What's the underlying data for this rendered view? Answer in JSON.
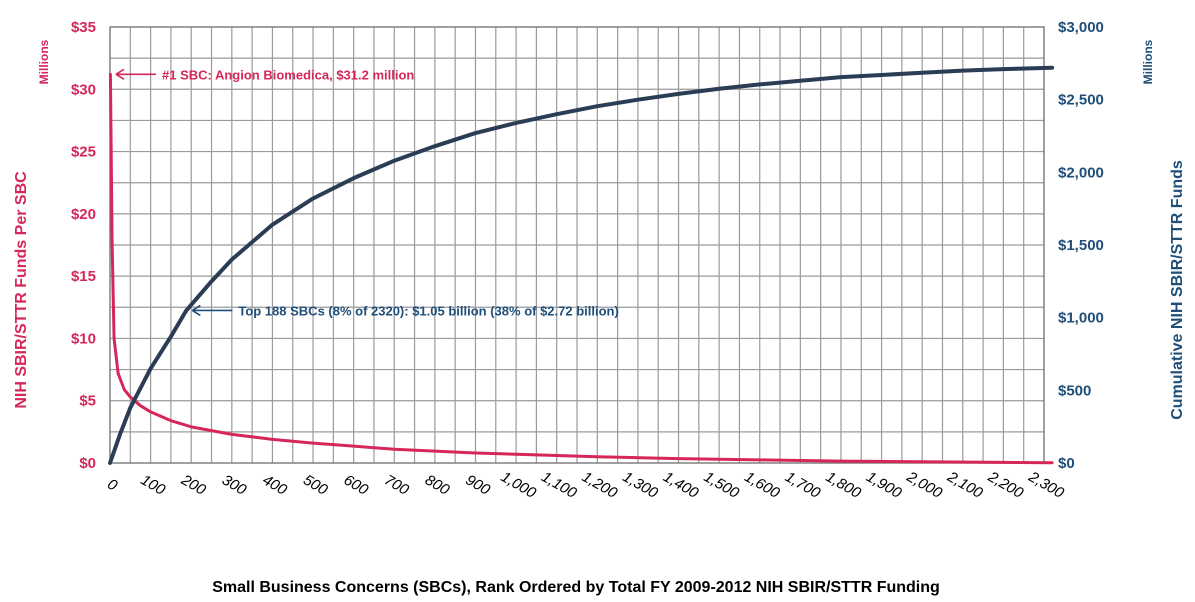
{
  "chart_data": {
    "type": "line",
    "xlabel": "Small Business Concerns (SBCs), Rank Ordered by Total FY 2009-2012 NIH SBIR/STTR Funding",
    "ylabel_left": "NIH SBIR/STTR Funds Per SBC",
    "ylabel_right": "Cumulative NIH SBIR/STTR Funds",
    "unit_left": "Millions",
    "unit_right": "Millions",
    "x_range": [
      0,
      2300
    ],
    "ylim_left": [
      0,
      35
    ],
    "ylim_right": [
      0,
      3000
    ],
    "x_ticks": [
      "0",
      "100",
      "200",
      "300",
      "400",
      "500",
      "600",
      "700",
      "800",
      "900",
      "1,000",
      "1,100",
      "1,200",
      "1,300",
      "1,400",
      "1,500",
      "1,600",
      "1,700",
      "1,800",
      "1,900",
      "2,000",
      "2,100",
      "2,200",
      "2,300"
    ],
    "y_left_ticks": [
      "$0",
      "$5",
      "$10",
      "$15",
      "$20",
      "$25",
      "$30",
      "$35"
    ],
    "y_right_ticks": [
      "$0",
      "$500",
      "$1,000",
      "$1,500",
      "$2,000",
      "$2,500",
      "$3,000"
    ],
    "grid": true,
    "annotations": [
      {
        "text": "#1 SBC: Angion Biomedica, $31.2 million",
        "axis": "left",
        "x": 0,
        "y": 31.2,
        "color": "#d6275a"
      },
      {
        "text": "Top 188 SBCs (8% of 2320): $1.05 billion (38% of $2.72 billion)",
        "axis": "right",
        "x": 188,
        "y": 1050,
        "color": "#1f4e79"
      }
    ],
    "series": [
      {
        "axis": "left",
        "color": "#d6275a",
        "x": [
          1,
          5,
          10,
          20,
          35,
          50,
          75,
          100,
          150,
          200,
          300,
          400,
          500,
          600,
          700,
          800,
          900,
          1000,
          1200,
          1400,
          1600,
          1800,
          2000,
          2200,
          2320
        ],
        "y": [
          31.2,
          18,
          10,
          7.2,
          5.9,
          5.3,
          4.6,
          4.1,
          3.4,
          2.9,
          2.3,
          1.9,
          1.6,
          1.35,
          1.1,
          0.95,
          0.8,
          0.7,
          0.5,
          0.35,
          0.25,
          0.15,
          0.1,
          0.05,
          0.02
        ]
      },
      {
        "axis": "right",
        "color": "#2a3d55",
        "x": [
          0,
          25,
          50,
          100,
          150,
          188,
          250,
          300,
          400,
          500,
          600,
          700,
          800,
          900,
          1000,
          1100,
          1200,
          1300,
          1400,
          1500,
          1600,
          1700,
          1800,
          1900,
          2000,
          2100,
          2200,
          2320
        ],
        "y": [
          0,
          200,
          380,
          650,
          870,
          1050,
          1250,
          1400,
          1640,
          1820,
          1960,
          2080,
          2180,
          2270,
          2340,
          2400,
          2455,
          2500,
          2540,
          2575,
          2605,
          2630,
          2655,
          2670,
          2685,
          2700,
          2710,
          2720
        ]
      }
    ]
  }
}
